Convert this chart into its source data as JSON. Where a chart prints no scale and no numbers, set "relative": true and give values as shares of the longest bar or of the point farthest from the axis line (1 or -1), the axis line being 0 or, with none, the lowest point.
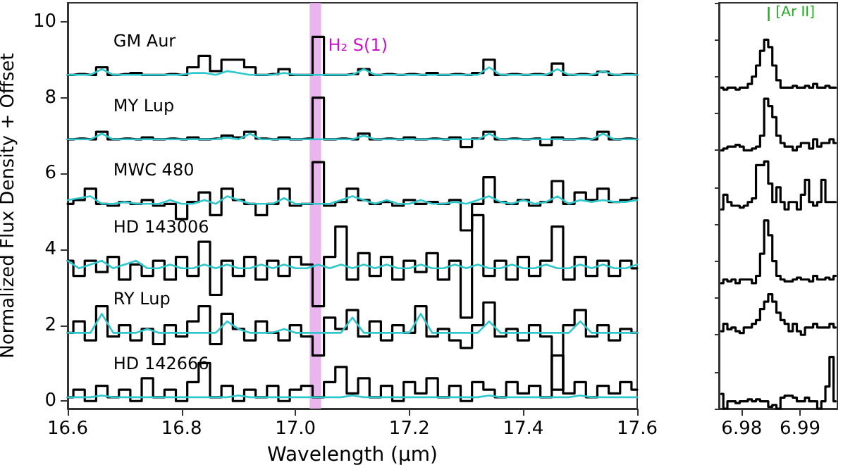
{
  "chart_data": [
    {
      "type": "step",
      "xlabel": "Wavelength (μm)",
      "ylabel": "Normalized Flux Density + Offset",
      "x": [
        16.6,
        16.62,
        16.64,
        16.66,
        16.68,
        16.7,
        16.72,
        16.74,
        16.76,
        16.78,
        16.8,
        16.82,
        16.84,
        16.86,
        16.88,
        16.9,
        16.92,
        16.94,
        16.96,
        16.98,
        17.0,
        17.02,
        17.04,
        17.06,
        17.08,
        17.1,
        17.12,
        17.14,
        17.16,
        17.18,
        17.2,
        17.22,
        17.24,
        17.26,
        17.28,
        17.3,
        17.32,
        17.34,
        17.36,
        17.38,
        17.4,
        17.42,
        17.44,
        17.46,
        17.48,
        17.5,
        17.52,
        17.54,
        17.56,
        17.58,
        17.6
      ],
      "xlim": [
        16.6,
        17.6
      ],
      "xticks": [
        16.6,
        16.8,
        {
          "value": 17,
          "label": "17.0"
        },
        17.2,
        17.4,
        17.6
      ],
      "ylim": [
        -0.2,
        10.5
      ],
      "yticks": [
        0,
        2,
        4,
        6,
        8,
        10
      ],
      "grid": false,
      "legend": false,
      "bands": [
        {
          "axis": "x",
          "from": 17.025,
          "to": 17.045,
          "label": "H₂ S(1)",
          "color": "#e6a8ec"
        }
      ],
      "series": [
        {
          "name": "GM Aur",
          "color": "#000000",
          "values": [
            8.6,
            8.62,
            8.6,
            8.8,
            8.6,
            8.62,
            8.65,
            8.6,
            8.6,
            8.62,
            8.6,
            8.8,
            9.1,
            8.7,
            9.0,
            9.0,
            8.8,
            8.6,
            8.62,
            8.75,
            8.6,
            8.6,
            9.6,
            8.6,
            8.6,
            8.62,
            8.75,
            8.6,
            8.62,
            8.6,
            8.62,
            8.6,
            8.65,
            8.6,
            8.62,
            8.6,
            8.65,
            9.0,
            8.6,
            8.62,
            8.6,
            8.62,
            8.6,
            8.9,
            8.6,
            8.62,
            8.6,
            8.68,
            8.6,
            8.62,
            8.6
          ]
        },
        {
          "type": "line",
          "color": "#2ec8cc",
          "values": [
            8.6,
            8.6,
            8.6,
            8.75,
            8.6,
            8.6,
            8.6,
            8.6,
            8.6,
            8.6,
            8.6,
            8.65,
            8.65,
            8.6,
            8.7,
            8.65,
            8.6,
            8.6,
            8.6,
            8.65,
            8.6,
            8.6,
            8.6,
            8.6,
            8.6,
            8.6,
            8.75,
            8.6,
            8.6,
            8.6,
            8.6,
            8.6,
            8.6,
            8.6,
            8.6,
            8.6,
            8.6,
            8.8,
            8.6,
            8.6,
            8.6,
            8.6,
            8.6,
            8.75,
            8.6,
            8.6,
            8.6,
            8.7,
            8.6,
            8.6,
            8.6
          ]
        },
        {
          "name": "MY Lup",
          "color": "#000000",
          "values": [
            6.9,
            6.92,
            6.9,
            7.1,
            6.9,
            6.92,
            6.9,
            6.95,
            6.9,
            6.92,
            6.9,
            6.95,
            6.9,
            6.92,
            7.0,
            6.95,
            7.1,
            6.92,
            6.9,
            6.95,
            6.9,
            6.92,
            8.0,
            6.9,
            6.92,
            6.9,
            7.05,
            6.9,
            6.92,
            6.9,
            6.95,
            6.9,
            6.92,
            6.9,
            6.95,
            6.7,
            6.92,
            7.1,
            6.9,
            6.92,
            6.9,
            6.92,
            6.75,
            6.95,
            6.9,
            6.92,
            6.9,
            7.1,
            6.9,
            6.92,
            6.9
          ]
        },
        {
          "type": "line",
          "color": "#2ec8cc",
          "values": [
            6.9,
            6.9,
            6.9,
            7.05,
            6.9,
            6.9,
            6.9,
            6.9,
            6.9,
            6.9,
            6.9,
            6.9,
            6.9,
            6.9,
            6.95,
            6.9,
            7.05,
            6.9,
            6.9,
            6.9,
            6.9,
            6.9,
            6.9,
            6.9,
            6.9,
            6.9,
            7.0,
            6.9,
            6.9,
            6.9,
            6.9,
            6.9,
            6.9,
            6.9,
            6.9,
            6.9,
            6.9,
            7.05,
            6.9,
            6.9,
            6.9,
            6.9,
            6.9,
            6.9,
            6.9,
            6.9,
            6.9,
            7.05,
            6.9,
            6.9,
            6.9
          ]
        },
        {
          "name": "MWC 480",
          "color": "#000000",
          "values": [
            5.2,
            5.3,
            5.6,
            5.2,
            5.15,
            5.25,
            5.2,
            5.3,
            5.15,
            5.2,
            4.8,
            5.25,
            5.5,
            4.9,
            5.6,
            5.3,
            5.2,
            4.9,
            5.2,
            5.6,
            5.15,
            5.2,
            6.3,
            5.15,
            5.25,
            5.6,
            5.3,
            5.2,
            5.25,
            5.15,
            5.3,
            5.2,
            5.25,
            5.2,
            5.3,
            4.5,
            5.2,
            5.9,
            5.25,
            5.2,
            5.3,
            5.15,
            5.25,
            5.8,
            5.2,
            5.5,
            5.3,
            5.6,
            5.25,
            5.3,
            5.35
          ]
        },
        {
          "type": "line",
          "color": "#2ec8cc",
          "values": [
            5.3,
            5.35,
            5.4,
            5.2,
            5.2,
            5.25,
            5.2,
            5.2,
            5.2,
            5.3,
            5.2,
            5.2,
            5.3,
            5.2,
            5.4,
            5.3,
            5.2,
            5.2,
            5.2,
            5.35,
            5.2,
            5.2,
            5.2,
            5.2,
            5.3,
            5.4,
            5.3,
            5.2,
            5.3,
            5.2,
            5.2,
            5.3,
            5.2,
            5.2,
            5.25,
            5.2,
            5.3,
            5.4,
            5.25,
            5.2,
            5.3,
            5.2,
            5.25,
            5.4,
            5.2,
            5.3,
            5.25,
            5.3,
            5.25,
            5.25,
            5.3
          ]
        },
        {
          "name": "HD 143006",
          "color": "#000000",
          "values": [
            3.7,
            3.3,
            3.7,
            3.4,
            3.8,
            3.2,
            3.6,
            3.3,
            3.7,
            3.2,
            3.8,
            3.3,
            4.2,
            2.8,
            3.7,
            3.3,
            3.8,
            3.2,
            3.7,
            3.3,
            3.8,
            3.6,
            2.5,
            3.8,
            4.6,
            3.2,
            3.9,
            3.3,
            3.8,
            3.2,
            3.7,
            3.4,
            3.9,
            3.2,
            3.7,
            2.2,
            4.9,
            3.3,
            3.7,
            3.2,
            3.8,
            3.3,
            3.7,
            4.6,
            3.2,
            3.8,
            3.3,
            3.7,
            3.3,
            3.7,
            3.5
          ]
        },
        {
          "type": "line",
          "color": "#2ec8cc",
          "values": [
            3.7,
            3.5,
            3.6,
            3.7,
            3.5,
            3.6,
            3.7,
            3.5,
            3.5,
            3.6,
            3.5,
            3.5,
            3.6,
            3.5,
            3.6,
            3.5,
            3.5,
            3.6,
            3.5,
            3.6,
            3.5,
            3.5,
            3.6,
            3.5,
            3.6,
            3.5,
            3.6,
            3.5,
            3.6,
            3.5,
            3.5,
            3.6,
            3.5,
            3.5,
            3.6,
            3.5,
            3.6,
            3.5,
            3.5,
            3.6,
            3.5,
            3.5,
            3.6,
            3.5,
            3.5,
            3.6,
            3.5,
            3.6,
            3.5,
            3.5,
            3.6
          ]
        },
        {
          "name": "RY Lup",
          "color": "#000000",
          "values": [
            1.8,
            2.1,
            1.6,
            2.5,
            1.7,
            2.0,
            1.6,
            1.9,
            1.5,
            2.0,
            1.7,
            2.1,
            2.5,
            1.5,
            2.3,
            1.9,
            1.6,
            2.1,
            1.8,
            1.6,
            2.0,
            1.7,
            1.2,
            2.2,
            1.9,
            2.4,
            1.7,
            2.1,
            1.6,
            2.0,
            1.8,
            2.5,
            1.7,
            1.9,
            1.6,
            1.4,
            2.0,
            2.6,
            1.7,
            1.9,
            1.6,
            2.0,
            1.7,
            0.3,
            2.0,
            2.4,
            1.7,
            2.0,
            1.6,
            1.9,
            1.8
          ]
        },
        {
          "type": "line",
          "color": "#2ec8cc",
          "values": [
            1.8,
            1.8,
            1.8,
            2.3,
            1.8,
            1.8,
            1.8,
            1.9,
            1.8,
            1.8,
            1.8,
            1.8,
            1.8,
            1.8,
            2.1,
            1.9,
            1.8,
            1.8,
            1.8,
            1.9,
            1.8,
            1.8,
            1.8,
            1.8,
            1.8,
            2.2,
            1.8,
            1.8,
            1.8,
            1.8,
            1.8,
            2.3,
            1.8,
            1.8,
            1.8,
            1.8,
            1.8,
            2.1,
            1.8,
            1.8,
            1.8,
            1.8,
            1.8,
            1.8,
            1.8,
            2.1,
            1.8,
            1.8,
            1.8,
            1.8,
            1.8
          ]
        },
        {
          "name": "HD 142666",
          "color": "#000000",
          "values": [
            0.1,
            0.3,
            0.0,
            0.4,
            0.1,
            0.3,
            0.0,
            0.6,
            0.1,
            0.3,
            0.0,
            0.5,
            1.0,
            0.1,
            0.4,
            0.0,
            0.3,
            0.1,
            0.4,
            0.0,
            0.3,
            0.4,
            0.1,
            0.5,
            0.9,
            0.2,
            0.6,
            0.1,
            0.4,
            0.0,
            0.5,
            0.2,
            0.6,
            0.1,
            0.4,
            0.0,
            0.5,
            0.3,
            0.1,
            0.5,
            0.2,
            0.4,
            0.1,
            1.2,
            0.2,
            0.5,
            0.1,
            0.4,
            0.2,
            0.5,
            0.3
          ]
        },
        {
          "type": "line",
          "color": "#2ec8cc",
          "values": [
            0.1,
            0.1,
            0.1,
            0.15,
            0.1,
            0.1,
            0.1,
            0.1,
            0.1,
            0.1,
            0.1,
            0.1,
            0.1,
            0.1,
            0.1,
            0.15,
            0.1,
            0.1,
            0.1,
            0.1,
            0.1,
            0.1,
            0.1,
            0.1,
            0.1,
            0.15,
            0.1,
            0.1,
            0.1,
            0.1,
            0.1,
            0.1,
            0.1,
            0.1,
            0.1,
            0.1,
            0.1,
            0.15,
            0.1,
            0.1,
            0.1,
            0.1,
            0.1,
            0.1,
            0.1,
            0.15,
            0.1,
            0.1,
            0.1,
            0.1,
            0.1
          ]
        }
      ]
    },
    {
      "type": "step",
      "relative": true,
      "tick_labels": "x",
      "grid": false,
      "legend": false,
      "x": [
        6.9765,
        6.9772,
        6.9779,
        6.9786,
        6.9793,
        6.98,
        6.9807,
        6.9814,
        6.9821,
        6.9828,
        6.9835,
        6.9842,
        6.9849,
        6.9856,
        6.9863,
        6.987,
        6.9877,
        6.9884,
        6.9891,
        6.9898,
        6.9905,
        6.9912,
        6.9919,
        6.9926,
        6.9933,
        6.994,
        6.9947,
        6.9954,
        6.9961
      ],
      "xlim": [
        6.9761,
        6.9964
      ],
      "xticks": [
        6.98,
        6.99
      ],
      "annotations": [
        "[Ar II]"
      ],
      "series": [
        {
          "color": "#000000",
          "values": [
            0.87,
            0.865,
            0.87,
            0.87,
            0.865,
            0.87,
            0.87,
            0.88,
            0.9,
            0.93,
            0.97,
            1.0,
            0.98,
            0.93,
            0.89,
            0.87,
            0.87,
            0.87,
            0.875,
            0.87,
            0.87,
            0.875,
            0.87,
            0.88,
            0.87,
            0.87,
            0.875,
            0.87,
            0.87
          ]
        },
        {
          "color": "#000000",
          "values": [
            0.7,
            0.705,
            0.71,
            0.71,
            0.715,
            0.71,
            0.7,
            0.7,
            0.705,
            0.71,
            0.74,
            0.84,
            0.82,
            0.79,
            0.74,
            0.72,
            0.71,
            0.71,
            0.7,
            0.71,
            0.72,
            0.72,
            0.705,
            0.73,
            0.71,
            0.72,
            0.72,
            0.73,
            0.72
          ]
        },
        {
          "color": "#000000",
          "values": [
            0.54,
            0.58,
            0.56,
            0.55,
            0.55,
            0.545,
            0.55,
            0.56,
            0.57,
            0.66,
            0.66,
            0.67,
            0.61,
            0.56,
            0.6,
            0.56,
            0.54,
            0.56,
            0.56,
            0.54,
            0.58,
            0.62,
            0.56,
            0.55,
            0.56,
            0.62,
            0.56,
            0.56,
            0.56
          ]
        },
        {
          "color": "#000000",
          "values": [
            0.34,
            0.35,
            0.345,
            0.35,
            0.34,
            0.35,
            0.35,
            0.35,
            0.34,
            0.36,
            0.42,
            0.51,
            0.47,
            0.4,
            0.36,
            0.35,
            0.345,
            0.345,
            0.35,
            0.355,
            0.35,
            0.35,
            0.345,
            0.36,
            0.35,
            0.35,
            0.355,
            0.35,
            0.36
          ]
        },
        {
          "color": "#000000",
          "values": [
            0.21,
            0.23,
            0.215,
            0.22,
            0.21,
            0.205,
            0.22,
            0.22,
            0.23,
            0.24,
            0.27,
            0.29,
            0.31,
            0.29,
            0.26,
            0.24,
            0.23,
            0.21,
            0.23,
            0.21,
            0.2,
            0.22,
            0.22,
            0.23,
            0.22,
            0.22,
            0.22,
            0.23,
            0.22
          ]
        },
        {
          "color": "#000000",
          "values": [
            0.04,
            0.0,
            0.02,
            0.02,
            0.015,
            0.02,
            0.02,
            0.025,
            0.02,
            0.025,
            0.02,
            0.02,
            0.005,
            0.01,
            0.0,
            0.03,
            0.035,
            0.035,
            0.03,
            0.02,
            0.02,
            0.03,
            0.02,
            0.02,
            0.0,
            0.02,
            0.06,
            0.14,
            0.02
          ]
        }
      ]
    }
  ]
}
